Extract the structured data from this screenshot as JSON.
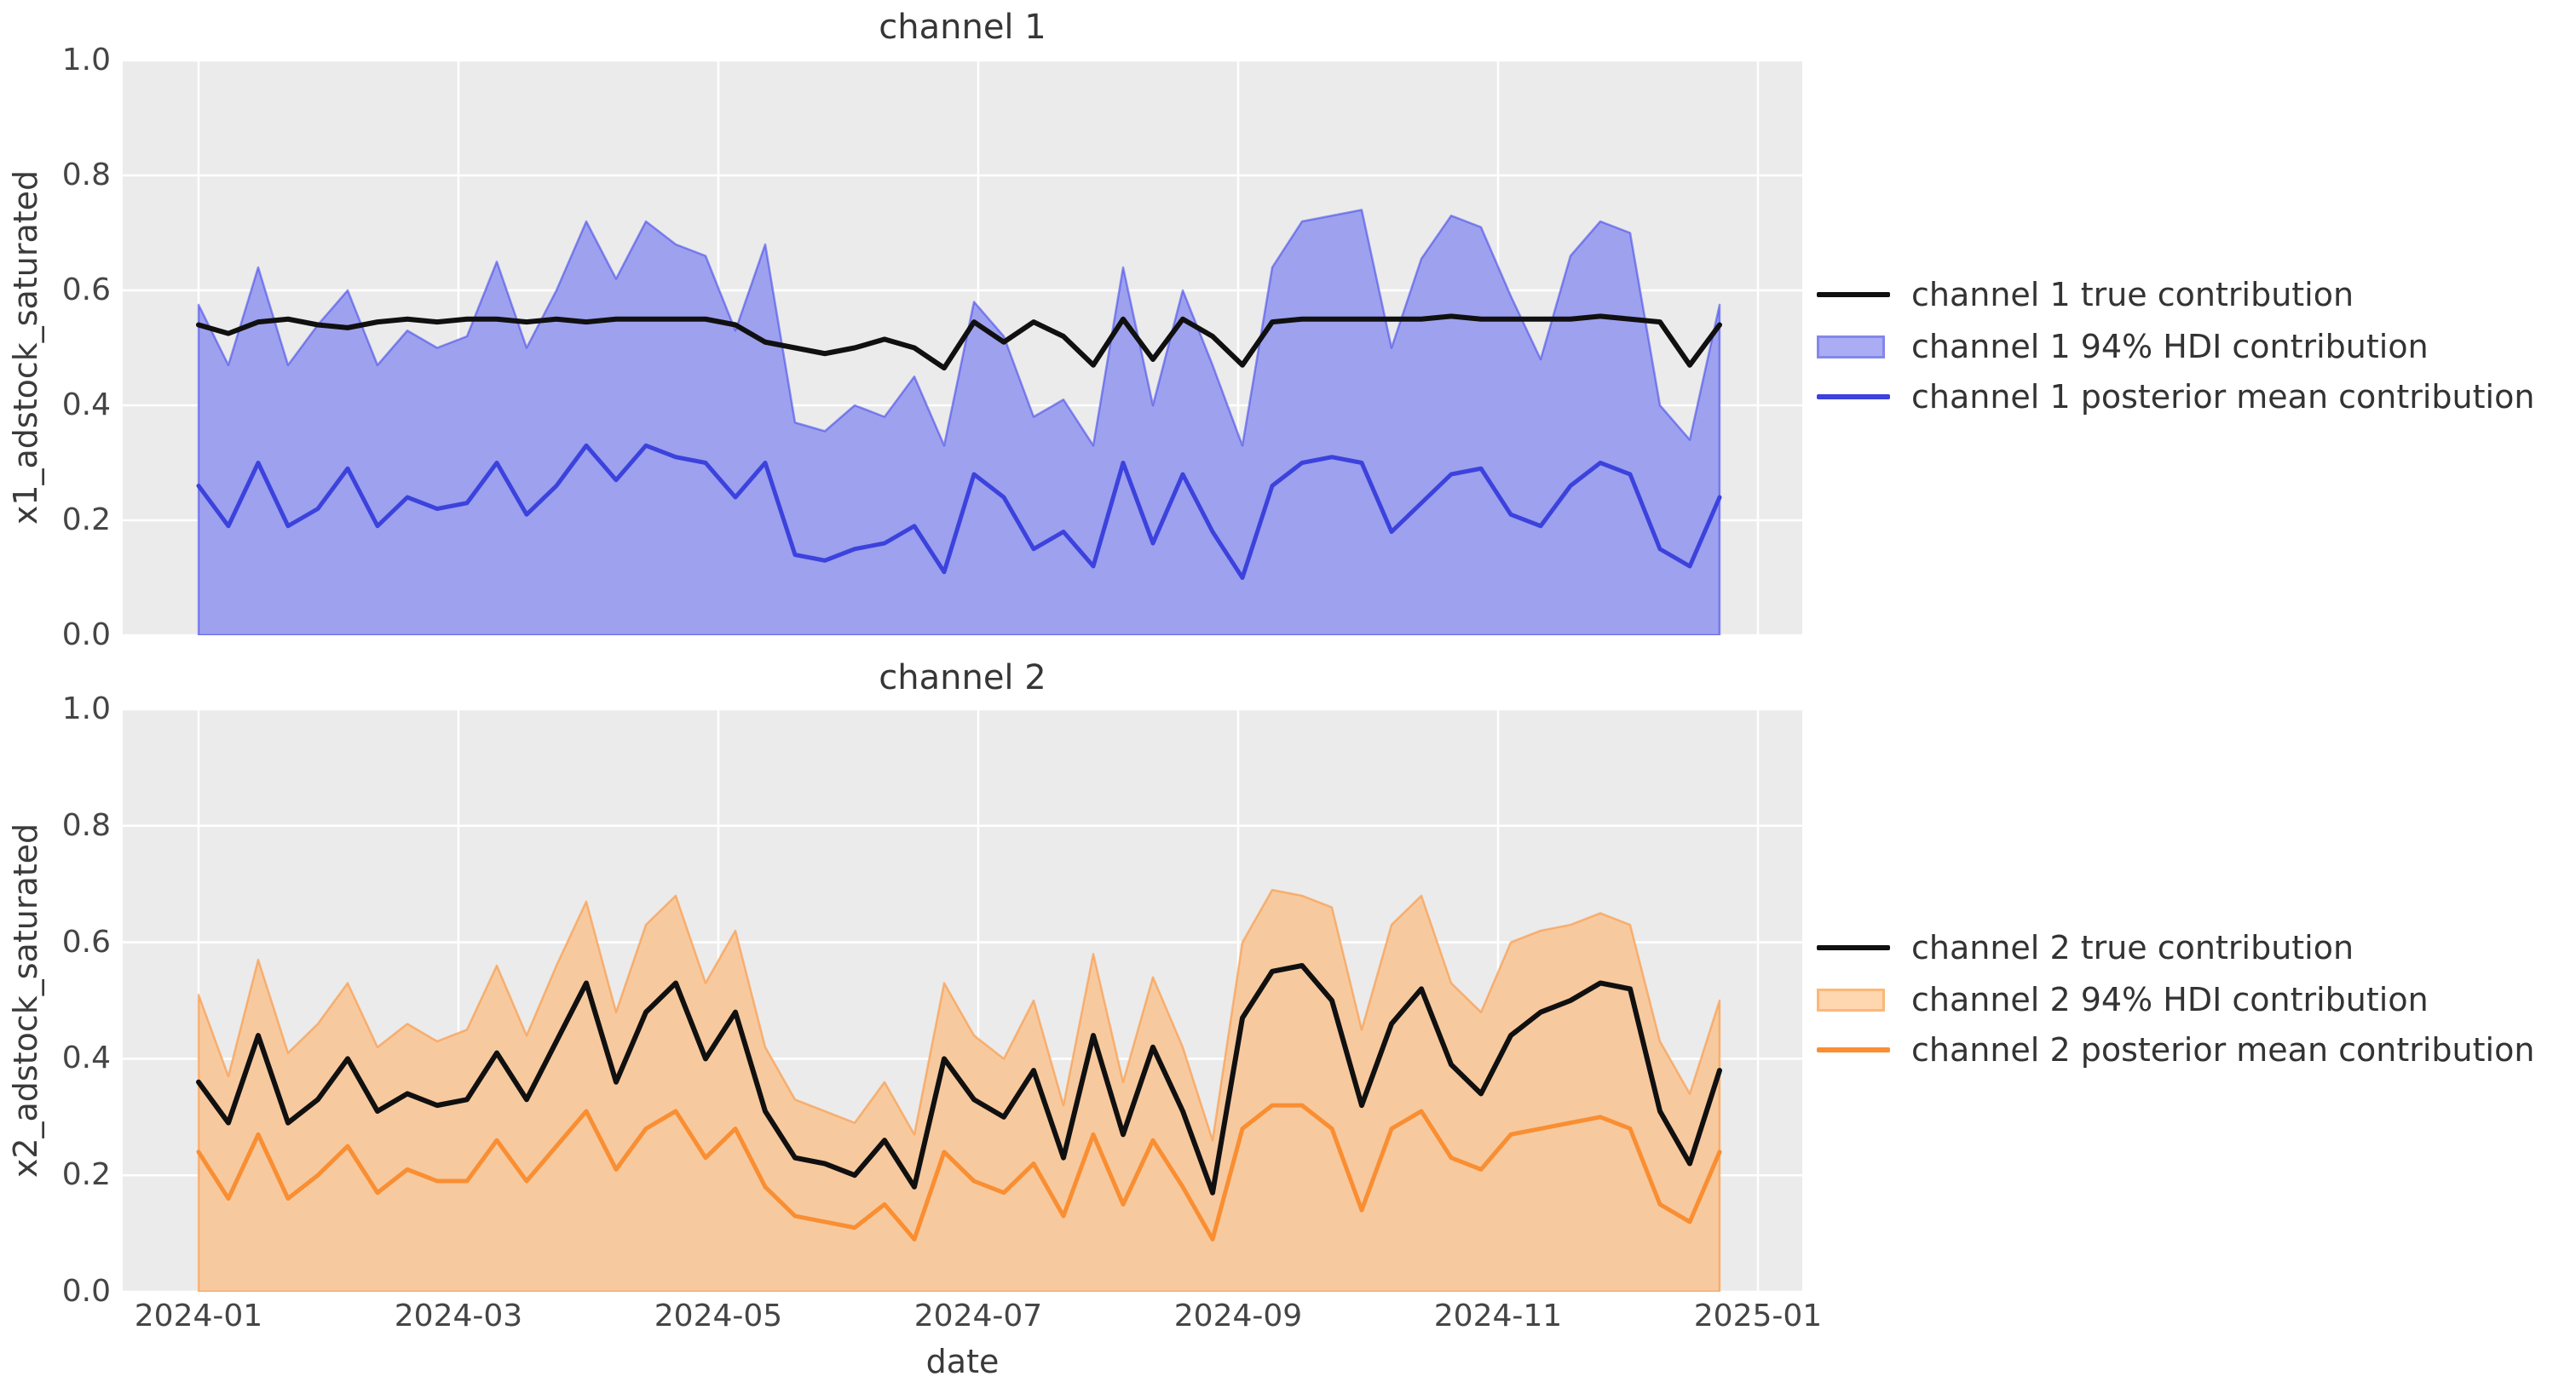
{
  "figure": {
    "background": "#ffffff",
    "plot_background": "#ebebeb",
    "grid_color": "#ffffff"
  },
  "xlabel": "date",
  "chart_data": [
    {
      "type": "area",
      "title": "channel 1",
      "ylabel": "x1_adstock_saturated",
      "xlabel": "date",
      "ylim": [
        0.0,
        1.0
      ],
      "grid": true,
      "legend_position": "center right",
      "yticks": [
        "0.0",
        "0.2",
        "0.4",
        "0.6",
        "0.8",
        "1.0"
      ],
      "xtick_labels": [
        "2024-01",
        "2024-03",
        "2024-05",
        "2024-07",
        "2024-09",
        "2024-11",
        "2025-01"
      ],
      "x": [
        "2024-01-01",
        "2024-01-08",
        "2024-01-15",
        "2024-01-22",
        "2024-01-29",
        "2024-02-05",
        "2024-02-12",
        "2024-02-19",
        "2024-02-26",
        "2024-03-04",
        "2024-03-11",
        "2024-03-18",
        "2024-03-25",
        "2024-04-01",
        "2024-04-08",
        "2024-04-15",
        "2024-04-22",
        "2024-04-29",
        "2024-05-06",
        "2024-05-13",
        "2024-05-20",
        "2024-05-27",
        "2024-06-03",
        "2024-06-10",
        "2024-06-17",
        "2024-06-24",
        "2024-07-01",
        "2024-07-08",
        "2024-07-15",
        "2024-07-22",
        "2024-07-29",
        "2024-08-05",
        "2024-08-12",
        "2024-08-19",
        "2024-08-26",
        "2024-09-02",
        "2024-09-09",
        "2024-09-16",
        "2024-09-23",
        "2024-09-30",
        "2024-10-07",
        "2024-10-14",
        "2024-10-21",
        "2024-10-28",
        "2024-11-04",
        "2024-11-11",
        "2024-11-18",
        "2024-11-25",
        "2024-12-02",
        "2024-12-09",
        "2024-12-16",
        "2024-12-23"
      ],
      "series": [
        {
          "name": "channel 1 true contribution",
          "type": "line",
          "color": "#101010",
          "width": 6,
          "values": [
            0.54,
            0.525,
            0.545,
            0.55,
            0.54,
            0.535,
            0.545,
            0.55,
            0.545,
            0.55,
            0.55,
            0.545,
            0.55,
            0.545,
            0.55,
            0.55,
            0.55,
            0.55,
            0.54,
            0.51,
            0.5,
            0.49,
            0.5,
            0.515,
            0.5,
            0.465,
            0.545,
            0.51,
            0.545,
            0.52,
            0.47,
            0.55,
            0.48,
            0.55,
            0.52,
            0.47,
            0.545,
            0.55,
            0.55,
            0.55,
            0.55,
            0.55,
            0.555,
            0.55,
            0.55,
            0.55,
            0.55,
            0.555,
            0.55,
            0.545,
            0.47,
            0.54
          ]
        },
        {
          "name": "channel 1 94% HDI contribution",
          "type": "band",
          "fill": "#9da1ee",
          "edge": "rgba(60,65,235,0.55)",
          "legend_fill": "#abadf4",
          "legend_edge": "#8387ea",
          "upper": [
            0.575,
            0.47,
            0.64,
            0.47,
            0.54,
            0.6,
            0.47,
            0.53,
            0.5,
            0.52,
            0.65,
            0.5,
            0.6,
            0.72,
            0.62,
            0.72,
            0.68,
            0.66,
            0.53,
            0.68,
            0.37,
            0.355,
            0.4,
            0.38,
            0.45,
            0.33,
            0.58,
            0.52,
            0.38,
            0.41,
            0.33,
            0.64,
            0.4,
            0.6,
            0.47,
            0.33,
            0.64,
            0.72,
            0.73,
            0.74,
            0.5,
            0.655,
            0.73,
            0.71,
            0.59,
            0.48,
            0.66,
            0.72,
            0.7,
            0.4,
            0.34,
            0.575
          ],
          "lower": [
            0,
            0,
            0,
            0,
            0,
            0,
            0,
            0,
            0,
            0,
            0,
            0,
            0,
            0,
            0,
            0,
            0,
            0,
            0,
            0,
            0,
            0,
            0,
            0,
            0,
            0,
            0,
            0,
            0,
            0,
            0,
            0,
            0,
            0,
            0,
            0,
            0,
            0,
            0,
            0,
            0,
            0,
            0,
            0,
            0,
            0,
            0,
            0,
            0,
            0,
            0,
            0
          ]
        },
        {
          "name": "channel 1 posterior mean contribution",
          "type": "line",
          "color": "#3c42dc",
          "width": 5,
          "values": [
            0.26,
            0.19,
            0.3,
            0.19,
            0.22,
            0.29,
            0.19,
            0.24,
            0.22,
            0.23,
            0.3,
            0.21,
            0.26,
            0.33,
            0.27,
            0.33,
            0.31,
            0.3,
            0.24,
            0.3,
            0.14,
            0.13,
            0.15,
            0.16,
            0.19,
            0.11,
            0.28,
            0.24,
            0.15,
            0.18,
            0.12,
            0.3,
            0.16,
            0.28,
            0.18,
            0.1,
            0.26,
            0.3,
            0.31,
            0.3,
            0.18,
            0.23,
            0.28,
            0.29,
            0.21,
            0.19,
            0.26,
            0.3,
            0.28,
            0.15,
            0.12,
            0.24
          ]
        }
      ]
    },
    {
      "type": "area",
      "title": "channel 2",
      "ylabel": "x2_adstock_saturated",
      "xlabel": "date",
      "ylim": [
        0.0,
        1.0
      ],
      "grid": true,
      "legend_position": "center right",
      "yticks": [
        "0.0",
        "0.2",
        "0.4",
        "0.6",
        "0.8",
        "1.0"
      ],
      "xtick_labels": [
        "2024-01",
        "2024-03",
        "2024-05",
        "2024-07",
        "2024-09",
        "2024-11",
        "2025-01"
      ],
      "x": [
        "2024-01-01",
        "2024-01-08",
        "2024-01-15",
        "2024-01-22",
        "2024-01-29",
        "2024-02-05",
        "2024-02-12",
        "2024-02-19",
        "2024-02-26",
        "2024-03-04",
        "2024-03-11",
        "2024-03-18",
        "2024-03-25",
        "2024-04-01",
        "2024-04-08",
        "2024-04-15",
        "2024-04-22",
        "2024-04-29",
        "2024-05-06",
        "2024-05-13",
        "2024-05-20",
        "2024-05-27",
        "2024-06-03",
        "2024-06-10",
        "2024-06-17",
        "2024-06-24",
        "2024-07-01",
        "2024-07-08",
        "2024-07-15",
        "2024-07-22",
        "2024-07-29",
        "2024-08-05",
        "2024-08-12",
        "2024-08-19",
        "2024-08-26",
        "2024-09-02",
        "2024-09-09",
        "2024-09-16",
        "2024-09-23",
        "2024-09-30",
        "2024-10-07",
        "2024-10-14",
        "2024-10-21",
        "2024-10-28",
        "2024-11-04",
        "2024-11-11",
        "2024-11-18",
        "2024-11-25",
        "2024-12-02",
        "2024-12-09",
        "2024-12-16",
        "2024-12-23"
      ],
      "series": [
        {
          "name": "channel 2 true contribution",
          "type": "line",
          "color": "#101010",
          "width": 6,
          "values": [
            0.36,
            0.29,
            0.44,
            0.29,
            0.33,
            0.4,
            0.31,
            0.34,
            0.32,
            0.33,
            0.41,
            0.33,
            0.43,
            0.53,
            0.36,
            0.48,
            0.53,
            0.4,
            0.48,
            0.31,
            0.23,
            0.22,
            0.2,
            0.26,
            0.18,
            0.4,
            0.33,
            0.3,
            0.38,
            0.23,
            0.44,
            0.27,
            0.42,
            0.31,
            0.17,
            0.47,
            0.55,
            0.56,
            0.5,
            0.32,
            0.46,
            0.52,
            0.39,
            0.34,
            0.44,
            0.48,
            0.5,
            0.53,
            0.52,
            0.31,
            0.22,
            0.38
          ]
        },
        {
          "name": "channel 2 94% HDI contribution",
          "type": "band",
          "fill": "#f7c99e",
          "edge": "rgba(250,146,58,0.6)",
          "legend_fill": "#fed6b0",
          "legend_edge": "#fcb877",
          "upper": [
            0.51,
            0.37,
            0.57,
            0.41,
            0.46,
            0.53,
            0.42,
            0.46,
            0.43,
            0.45,
            0.56,
            0.44,
            0.56,
            0.67,
            0.48,
            0.63,
            0.68,
            0.53,
            0.62,
            0.42,
            0.33,
            0.31,
            0.29,
            0.36,
            0.27,
            0.53,
            0.44,
            0.4,
            0.5,
            0.32,
            0.58,
            0.36,
            0.54,
            0.42,
            0.26,
            0.6,
            0.69,
            0.68,
            0.66,
            0.45,
            0.63,
            0.68,
            0.53,
            0.48,
            0.6,
            0.62,
            0.63,
            0.65,
            0.63,
            0.43,
            0.34,
            0.5
          ],
          "lower": [
            0,
            0,
            0,
            0,
            0,
            0,
            0,
            0,
            0,
            0,
            0,
            0,
            0,
            0,
            0,
            0,
            0,
            0,
            0,
            0,
            0,
            0,
            0,
            0,
            0,
            0,
            0,
            0,
            0,
            0,
            0,
            0,
            0,
            0,
            0,
            0,
            0,
            0,
            0,
            0,
            0,
            0,
            0,
            0,
            0,
            0,
            0,
            0,
            0,
            0,
            0,
            0
          ]
        },
        {
          "name": "channel 2 posterior mean contribution",
          "type": "line",
          "color": "#f98e32",
          "width": 5,
          "values": [
            0.24,
            0.16,
            0.27,
            0.16,
            0.2,
            0.25,
            0.17,
            0.21,
            0.19,
            0.19,
            0.26,
            0.19,
            0.25,
            0.31,
            0.21,
            0.28,
            0.31,
            0.23,
            0.28,
            0.18,
            0.13,
            0.12,
            0.11,
            0.15,
            0.09,
            0.24,
            0.19,
            0.17,
            0.22,
            0.13,
            0.27,
            0.15,
            0.26,
            0.18,
            0.09,
            0.28,
            0.32,
            0.32,
            0.28,
            0.14,
            0.28,
            0.31,
            0.23,
            0.21,
            0.27,
            0.28,
            0.29,
            0.3,
            0.28,
            0.15,
            0.12,
            0.24
          ]
        }
      ]
    }
  ]
}
